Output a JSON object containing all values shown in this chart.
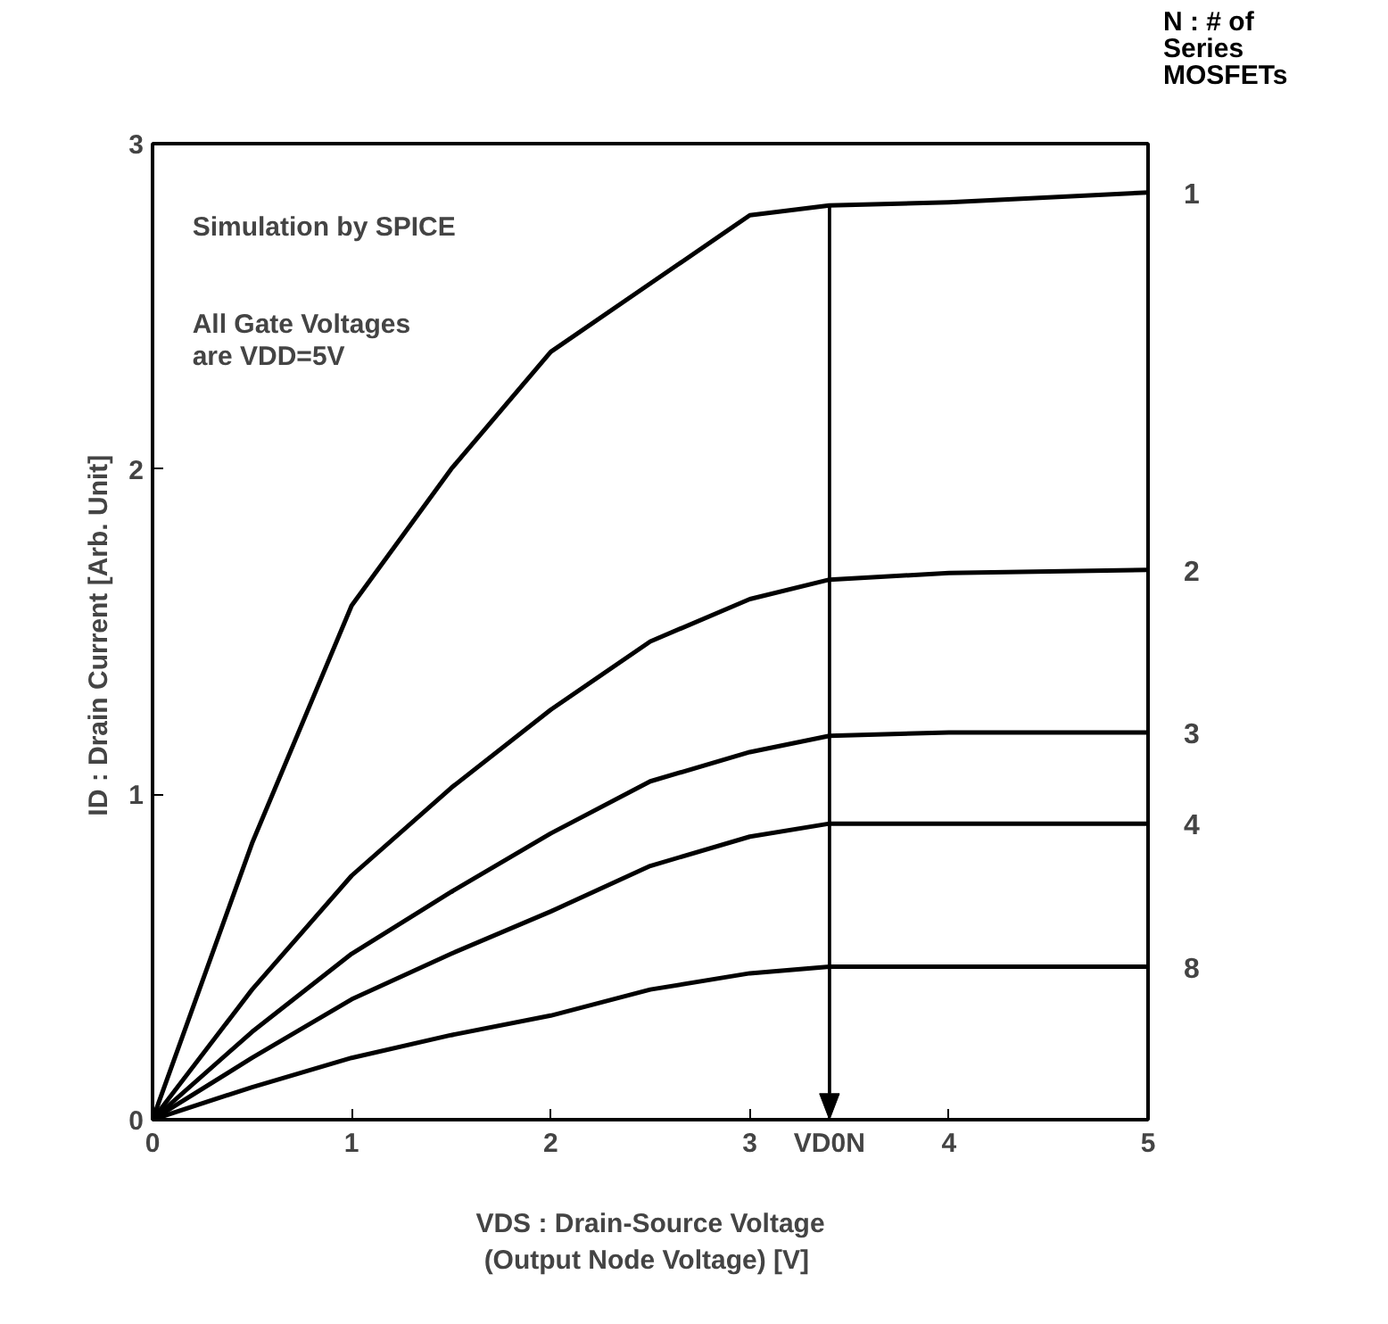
{
  "chart_data": {
    "type": "line",
    "xlabel": "VDS : Drain-Source Voltage\n(Output Node Voltage)  [V]",
    "ylabel": "ID : Drain Current  [Arb. Unit]",
    "legend_title": "N : # of\nSeries\nMOSFETs",
    "x": [
      0,
      0.5,
      1,
      1.5,
      2,
      2.5,
      3,
      3.4,
      4,
      5
    ],
    "series": [
      {
        "name": "1",
        "color": "#000000",
        "values": [
          0,
          0.85,
          1.58,
          2.0,
          2.36,
          2.57,
          2.78,
          2.81,
          2.82,
          2.85
        ]
      },
      {
        "name": "2",
        "color": "#000000",
        "values": [
          0,
          0.4,
          0.75,
          1.02,
          1.26,
          1.47,
          1.6,
          1.66,
          1.68,
          1.69
        ]
      },
      {
        "name": "3",
        "color": "#000000",
        "values": [
          0,
          0.27,
          0.51,
          0.7,
          0.88,
          1.04,
          1.13,
          1.18,
          1.19,
          1.19
        ]
      },
      {
        "name": "4",
        "color": "#000000",
        "values": [
          0,
          0.19,
          0.37,
          0.51,
          0.64,
          0.78,
          0.87,
          0.91,
          0.91,
          0.91
        ]
      },
      {
        "name": "8",
        "color": "#000000",
        "values": [
          0,
          0.1,
          0.19,
          0.26,
          0.32,
          0.4,
          0.45,
          0.47,
          0.47,
          0.47
        ]
      }
    ],
    "xlim": [
      0,
      5
    ],
    "ylim": [
      0,
      3
    ],
    "xticks": [
      0,
      1,
      2,
      3,
      {
        "value": 3.4,
        "label": "VD0N"
      },
      4,
      5
    ],
    "yticks": [
      0,
      1,
      2,
      3
    ],
    "ref_lines": [
      {
        "axis": "x",
        "value": 3.4,
        "label": null
      }
    ],
    "annotations": [
      "Simulation by SPICE",
      "All Gate Voltages\nare VDD=5V"
    ],
    "grid": false,
    "marker": "none",
    "line_style": "solid"
  }
}
